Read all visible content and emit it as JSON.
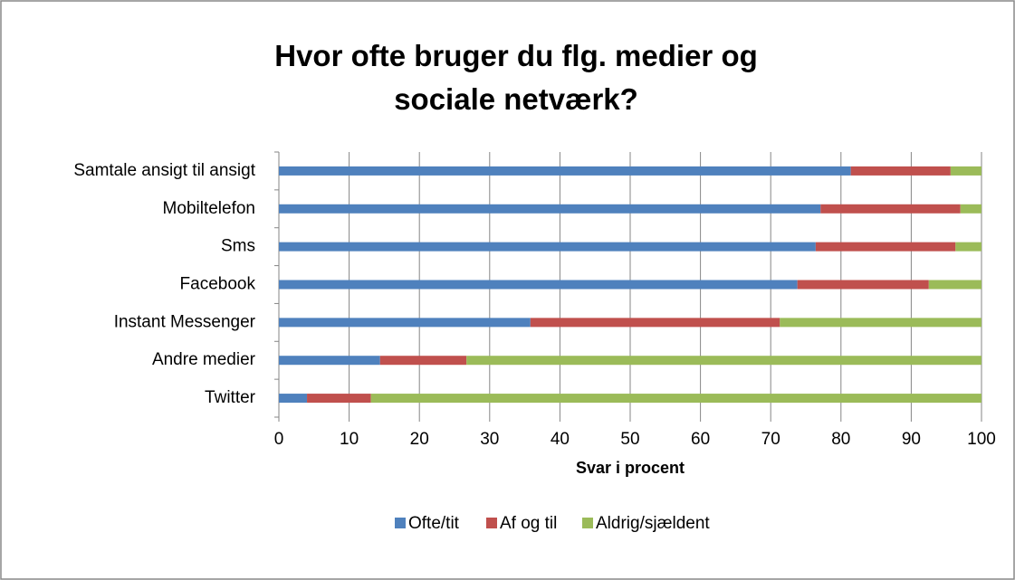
{
  "chart_data": {
    "type": "stacked_barh",
    "title": "Hvor ofte bruger du flg. medier og sociale netværk?",
    "xlabel": "Svar i procent",
    "categories": [
      "Samtale ansigt til ansigt",
      "Mobiltelefon",
      "Sms",
      "Facebook",
      "Instant Messenger",
      "Andre medier",
      "Twitter"
    ],
    "series": [
      {
        "name": "Ofte/tit",
        "color": "#4f81bd",
        "values": [
          81.4,
          77.1,
          76.4,
          73.8,
          35.8,
          14.4,
          4.0
        ]
      },
      {
        "name": "Af og til",
        "color": "#c0504d",
        "values": [
          14.2,
          19.9,
          19.9,
          18.7,
          35.5,
          12.3,
          9.1
        ]
      },
      {
        "name": "Aldrig/sjældent",
        "color": "#9bbb59",
        "values": [
          4.4,
          3.0,
          3.7,
          7.5,
          28.7,
          73.3,
          86.9
        ]
      }
    ],
    "xlim": [
      0,
      100
    ],
    "xticks": [
      0,
      10,
      20,
      30,
      40,
      50,
      60,
      70,
      80,
      90,
      100
    ],
    "grid": true,
    "legend": "bottom"
  }
}
